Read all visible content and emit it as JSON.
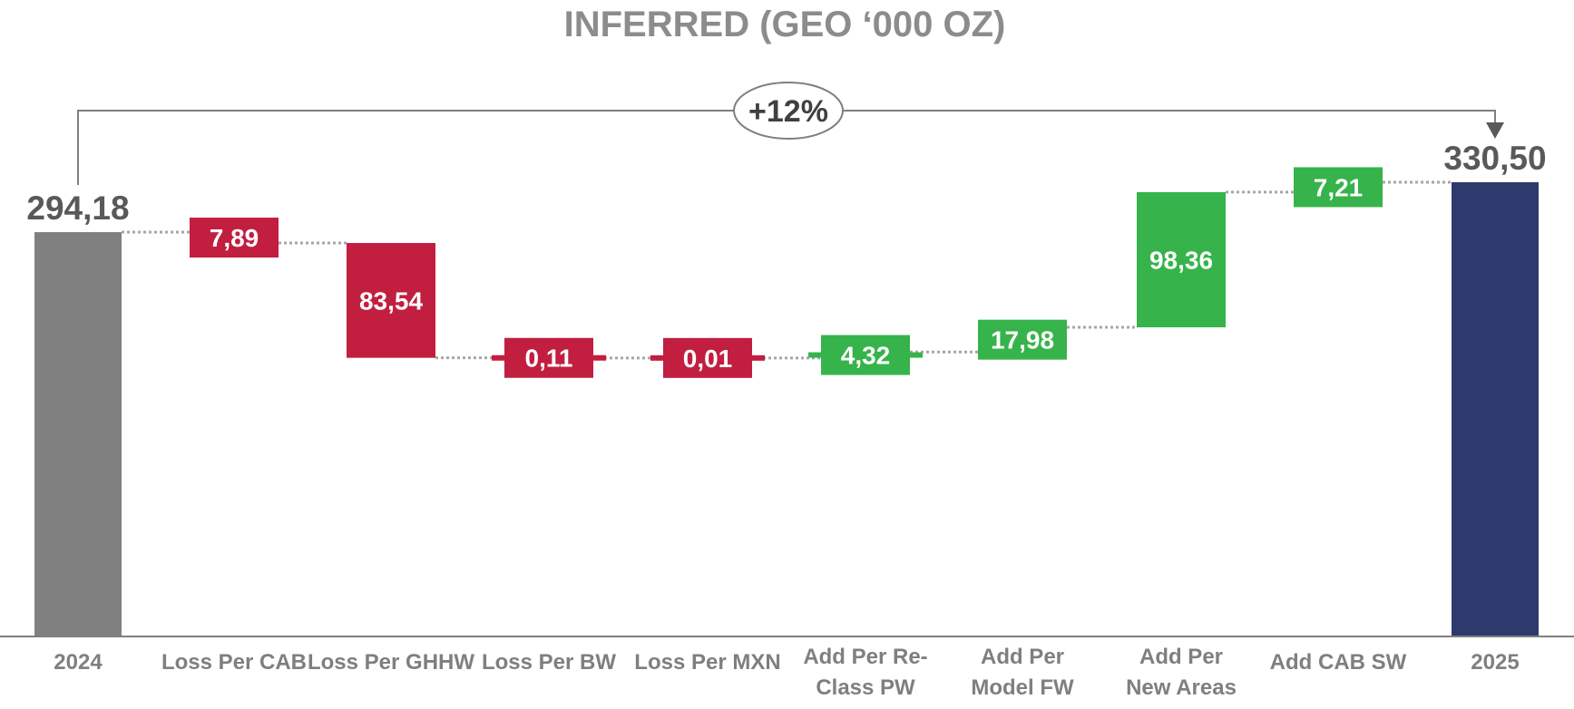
{
  "chart_data": {
    "type": "waterfall",
    "title": "INFERRED (GEO ‘000 OZ)",
    "categories": [
      [
        "2024"
      ],
      [
        "Loss Per CAB"
      ],
      [
        "Loss Per GHHW"
      ],
      [
        "Loss Per BW"
      ],
      [
        "Loss Per MXN"
      ],
      [
        "Add Per Re-",
        "Class PW"
      ],
      [
        "Add Per",
        "Model FW"
      ],
      [
        "Add Per",
        "New Areas"
      ],
      [
        "Add CAB SW"
      ],
      [
        "2025"
      ]
    ],
    "steps": [
      {
        "kind": "total",
        "value": 294.18,
        "label": "294,18"
      },
      {
        "kind": "loss",
        "value": -7.89,
        "label": "7,89"
      },
      {
        "kind": "loss",
        "value": -83.54,
        "label": "83,54"
      },
      {
        "kind": "loss",
        "value": -0.11,
        "label": "0,11"
      },
      {
        "kind": "loss",
        "value": -0.01,
        "label": "0,01"
      },
      {
        "kind": "gain",
        "value": 4.32,
        "label": "4,32"
      },
      {
        "kind": "gain",
        "value": 17.98,
        "label": "17,98"
      },
      {
        "kind": "gain",
        "value": 98.36,
        "label": "98,36"
      },
      {
        "kind": "gain",
        "value": 7.21,
        "label": "7,21"
      },
      {
        "kind": "total",
        "value": 330.5,
        "label": "330,50"
      }
    ],
    "change_annotation": "+12%",
    "ylim": [
      0,
      360
    ],
    "grid": false,
    "colors": {
      "start_total": "#808080",
      "end_total": "#2e3a6e",
      "loss": "#c11e40",
      "gain": "#36b34a",
      "connector": "#a6a6a6",
      "axis": "#7f7f7f"
    }
  }
}
